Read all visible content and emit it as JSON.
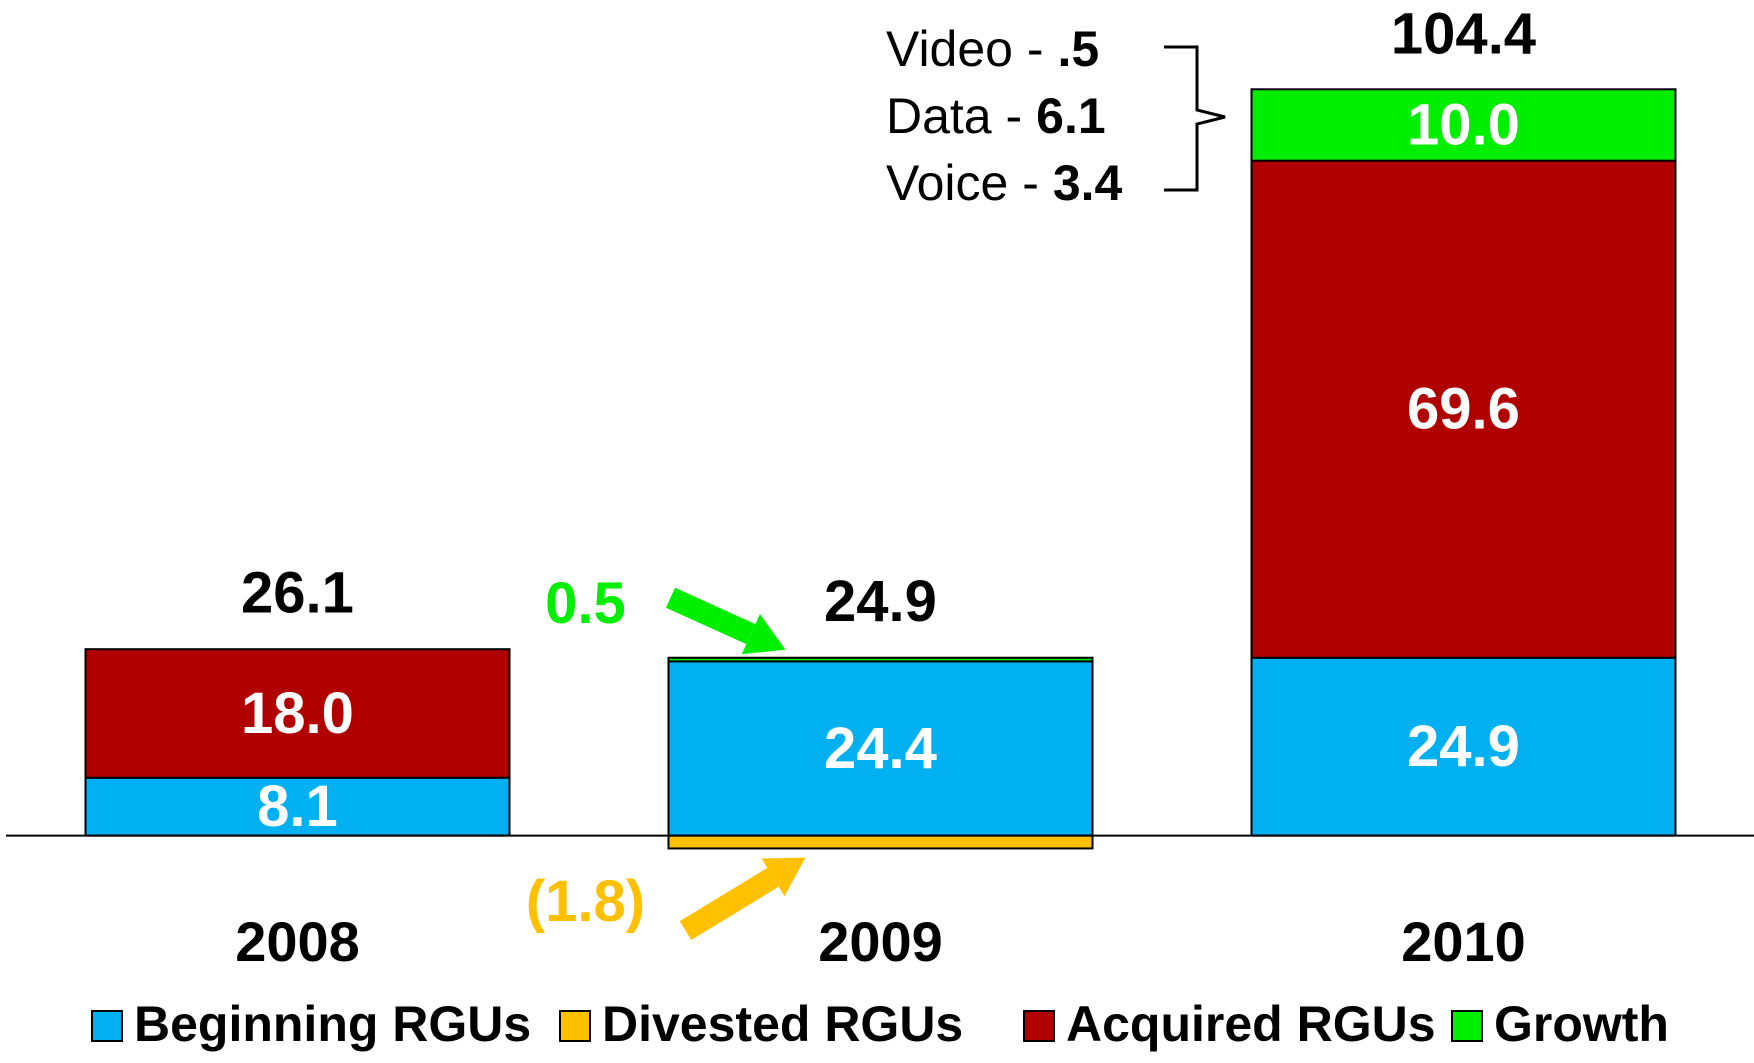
{
  "chart_data": {
    "type": "bar",
    "stacked": true,
    "categories": [
      "2008",
      "2009",
      "2010"
    ],
    "series": [
      {
        "name": "Beginning RGUs",
        "color": "#00b0f0",
        "values": [
          8.1,
          24.4,
          24.9
        ],
        "value_labels": [
          "8.1",
          "24.4",
          "24.9"
        ]
      },
      {
        "name": "Divested RGUs",
        "color": "#ffc000",
        "values": [
          null,
          -1.8,
          null
        ],
        "value_labels": [
          null,
          "(1.8)",
          null
        ]
      },
      {
        "name": "Acquired RGUs",
        "color": "#b00000",
        "values": [
          18.0,
          null,
          69.6
        ],
        "value_labels": [
          "18.0",
          null,
          "69.6"
        ]
      },
      {
        "name": "Growth",
        "color": "#00ee00",
        "values": [
          null,
          0.5,
          10.0
        ],
        "value_labels": [
          null,
          "0.5",
          "10.0"
        ]
      }
    ],
    "totals": [
      26.1,
      24.9,
      104.4
    ],
    "ylim": [
      -10,
      110
    ],
    "legend": "bottom",
    "annotation": [
      {
        "label": "Video -",
        "value_label": ".5"
      },
      {
        "label": "Data -",
        "value_label": "6.1"
      },
      {
        "label": "Voice -",
        "value_label": "3.4"
      }
    ]
  }
}
